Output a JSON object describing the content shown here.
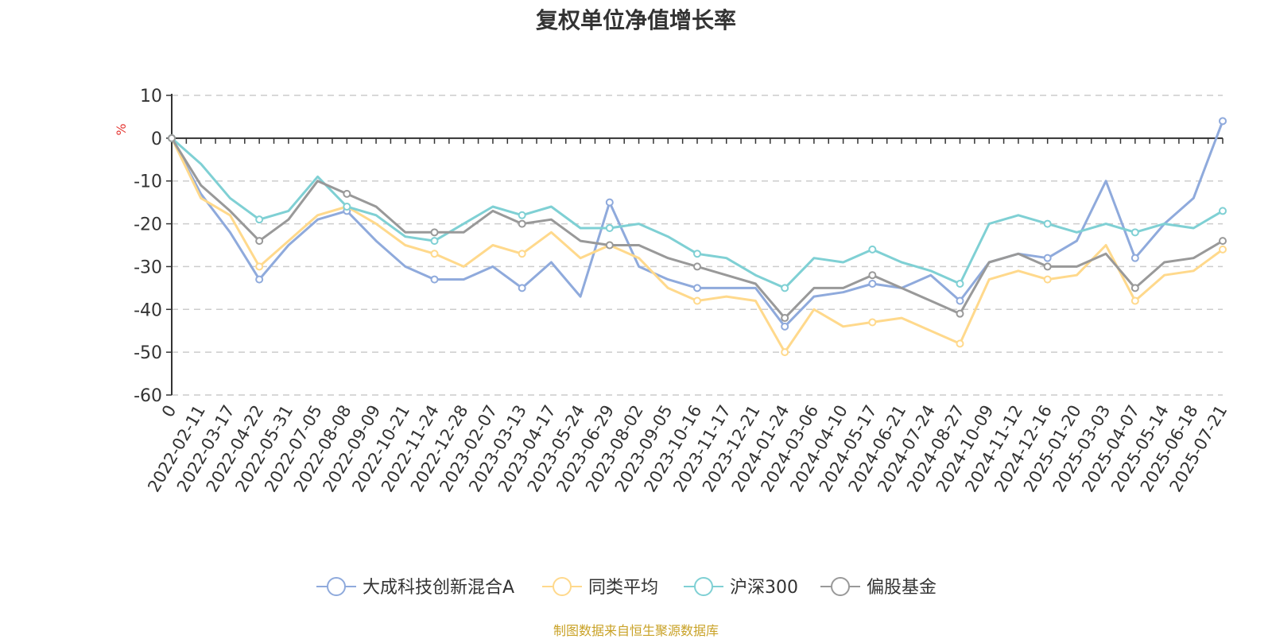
{
  "chart_data": {
    "type": "line",
    "title": "复权单位净值增长率",
    "ylabel": "%",
    "ylim": [
      -60,
      10
    ],
    "yticks": [
      10,
      0,
      -10,
      -20,
      -30,
      -40,
      -50,
      -60
    ],
    "grid": true,
    "legend_position": "bottom-center",
    "x_tick_labels": [
      "0",
      "2022-02-11",
      "2022-03-17",
      "2022-04-22",
      "2022-05-31",
      "2022-07-05",
      "2022-08-08",
      "2022-09-09",
      "2022-10-21",
      "2022-11-24",
      "2022-12-28",
      "2023-02-07",
      "2023-03-13",
      "2023-04-17",
      "2023-05-24",
      "2023-06-29",
      "2023-08-02",
      "2023-09-05",
      "2023-10-16",
      "2023-11-17",
      "2023-12-21",
      "2024-01-24",
      "2024-03-06",
      "2024-04-10",
      "2024-05-17",
      "2024-06-21",
      "2024-07-24",
      "2024-08-27",
      "2024-10-09",
      "2024-11-12",
      "2024-12-16",
      "2025-01-20",
      "2025-03-03",
      "2025-04-07",
      "2025-05-14",
      "2025-06-18",
      "2025-07-21"
    ],
    "series": [
      {
        "name": "大成科技创新混合A",
        "color": "#8faadc",
        "values": [
          0,
          -13,
          -22,
          -33,
          -25,
          -19,
          -17,
          -24,
          -30,
          -33,
          -33,
          -30,
          -35,
          -29,
          -37,
          -15,
          -30,
          -33,
          -35,
          -35,
          -35,
          -44,
          -37,
          -36,
          -34,
          -35,
          -32,
          -38,
          -29,
          -27,
          -28,
          -24,
          -10,
          -28,
          -20,
          -14,
          4
        ]
      },
      {
        "name": "同类平均",
        "color": "#ffd98c",
        "values": [
          0,
          -14,
          -18,
          -30,
          -24,
          -18,
          -16,
          -20,
          -25,
          -27,
          -30,
          -25,
          -27,
          -22,
          -28,
          -25,
          -28,
          -35,
          -38,
          -37,
          -38,
          -50,
          -40,
          -44,
          -43,
          -42,
          -45,
          -48,
          -33,
          -31,
          -33,
          -32,
          -25,
          -38,
          -32,
          -31,
          -26
        ]
      },
      {
        "name": "沪深300",
        "color": "#7fd0d4",
        "values": [
          0,
          -6,
          -14,
          -19,
          -17,
          -9,
          -16,
          -18,
          -23,
          -24,
          -20,
          -16,
          -18,
          -16,
          -21,
          -21,
          -20,
          -23,
          -27,
          -28,
          -32,
          -35,
          -28,
          -29,
          -26,
          -29,
          -31,
          -34,
          -20,
          -18,
          -20,
          -22,
          -20,
          -22,
          -20,
          -21,
          -17
        ]
      },
      {
        "name": "偏股基金",
        "color": "#999999",
        "values": [
          0,
          -11,
          -17,
          -24,
          -19,
          -10,
          -13,
          -16,
          -22,
          -22,
          -22,
          -17,
          -20,
          -19,
          -24,
          -25,
          -25,
          -28,
          -30,
          -32,
          -34,
          -42,
          -35,
          -35,
          -32,
          -35,
          -38,
          -41,
          -29,
          -27,
          -30,
          -30,
          -27,
          -35,
          -29,
          -28,
          -24
        ]
      }
    ]
  },
  "source_note": {
    "text": "制图数据来自恒生聚源数据库",
    "color": "#c9a227"
  }
}
